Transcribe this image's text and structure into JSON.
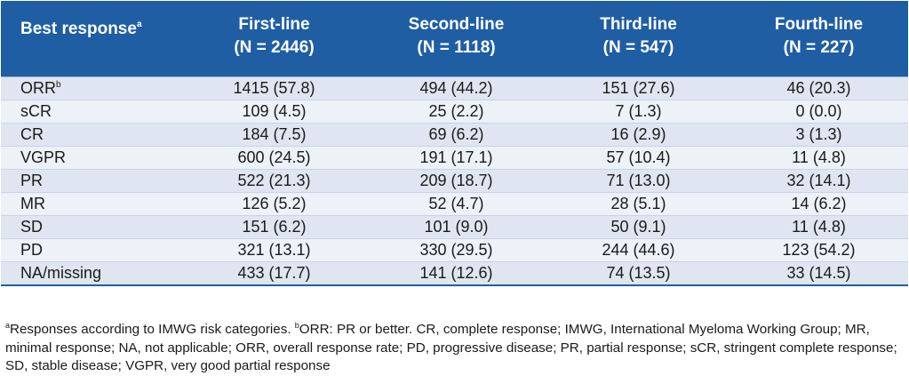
{
  "header": {
    "best_response": "Best response",
    "best_response_sup": "a",
    "columns": [
      {
        "line1": "First-line",
        "line2": "(N = 2446)"
      },
      {
        "line1": "Second-line",
        "line2": "(N = 1118)"
      },
      {
        "line1": "Third-line",
        "line2": "(N = 547)"
      },
      {
        "line1": "Fourth-line",
        "line2": "(N = 227)"
      }
    ]
  },
  "rows": [
    {
      "label": "ORR",
      "sup": "b",
      "values": [
        "1415 (57.8)",
        "494 (44.2)",
        "151 (27.6)",
        "46 (20.3)"
      ]
    },
    {
      "label": "sCR",
      "sup": "",
      "values": [
        "109 (4.5)",
        "25 (2.2)",
        "7 (1.3)",
        "0 (0.0)"
      ]
    },
    {
      "label": "CR",
      "sup": "",
      "values": [
        "184 (7.5)",
        "69 (6.2)",
        "16 (2.9)",
        "3 (1.3)"
      ]
    },
    {
      "label": "VGPR",
      "sup": "",
      "values": [
        "600 (24.5)",
        "191 (17.1)",
        "57 (10.4)",
        "11 (4.8)"
      ]
    },
    {
      "label": "PR",
      "sup": "",
      "values": [
        "522 (21.3)",
        "209 (18.7)",
        "71 (13.0)",
        "32 (14.1)"
      ]
    },
    {
      "label": "MR",
      "sup": "",
      "values": [
        "126 (5.2)",
        "52 (4.7)",
        "28 (5.1)",
        "14 (6.2)"
      ]
    },
    {
      "label": "SD",
      "sup": "",
      "values": [
        "151 (6.2)",
        "101 (9.0)",
        "50 (9.1)",
        "11 (4.8)"
      ]
    },
    {
      "label": "PD",
      "sup": "",
      "values": [
        "321 (13.1)",
        "330 (29.5)",
        "244 (44.6)",
        "123 (54.2)"
      ]
    },
    {
      "label": "NA/missing",
      "sup": "",
      "values": [
        "433 (17.7)",
        "141 (12.6)",
        "74 (13.5)",
        "33 (14.5)"
      ]
    }
  ],
  "footnote": {
    "sup_a": "a",
    "text_a": "Responses according to IMWG risk categories. ",
    "sup_b": "b",
    "text_b": "ORR: PR or better. CR, complete response; IMWG, International Myeloma Working Group; MR, minimal response; NA, not applicable; ORR, overall response rate; PD, progressive disease; PR, partial response; sCR, stringent complete response; SD, stable disease; VGPR, very good partial response"
  },
  "colors": {
    "header_bg": "#1f5ea3",
    "row_odd": "#dfe6f1",
    "row_even": "#edf1f8"
  }
}
